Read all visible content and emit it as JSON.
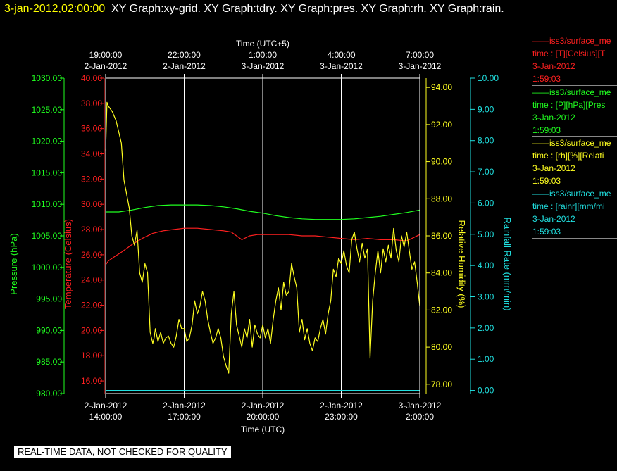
{
  "header": {
    "date_time": "3-jan-2012,02:00:00",
    "graphs": "XY Graph:xy-grid.  XY Graph:tdry.  XY Graph:pres.  XY Graph:rh.  XY Graph:rain."
  },
  "disclaimer": "REAL-TIME DATA, NOT CHECKED FOR QUALITY",
  "legend": [
    {
      "color": "#ff2020",
      "line1": "——iss3/surface_me",
      "line2": "time : [T][Celsius][T",
      "line3": "3-Jan-2012",
      "line4": "1:59:03"
    },
    {
      "color": "#20ff20",
      "line1": "——iss3/surface_me",
      "line2": "time : [P][hPa][Pres",
      "line3": "3-Jan-2012",
      "line4": "1:59:03"
    },
    {
      "color": "#ffff20",
      "line1": "——iss3/surface_me",
      "line2": "time : [rh][%][Relati",
      "line3": "3-Jan-2012",
      "line4": "1:59:03"
    },
    {
      "color": "#20e0e0",
      "line1": "——iss3/surface_me",
      "line2": "time : [rainr][mm/mi",
      "line3": "3-Jan-2012",
      "line4": "1:59:03"
    }
  ],
  "chart_data": {
    "type": "line",
    "colors": {
      "temperature": "#ff2020",
      "pressure": "#20ff20",
      "humidity": "#ffff20",
      "rain": "#20e0e0",
      "grid": "#ffffff"
    },
    "top_axis": {
      "label": "Time (UTC+5)",
      "ticks": [
        {
          "time": "19:00:00",
          "date": "2-Jan-2012"
        },
        {
          "time": "22:00:00",
          "date": "2-Jan-2012"
        },
        {
          "time": "1:00:00",
          "date": "3-Jan-2012"
        },
        {
          "time": "4:00:00",
          "date": "3-Jan-2012"
        },
        {
          "time": "7:00:00",
          "date": "3-Jan-2012"
        }
      ]
    },
    "bottom_axis": {
      "label": "Time (UTC)",
      "ticks": [
        {
          "hours": 14,
          "date": "2-Jan-2012",
          "time": "14:00:00"
        },
        {
          "hours": 17,
          "date": "2-Jan-2012",
          "time": "17:00:00"
        },
        {
          "hours": 20,
          "date": "2-Jan-2012",
          "time": "20:00:00"
        },
        {
          "hours": 23,
          "date": "2-Jan-2012",
          "time": "23:00:00"
        },
        {
          "hours": 26,
          "date": "3-Jan-2012",
          "time": "2:00:00"
        }
      ],
      "range_hours": [
        14,
        26
      ]
    },
    "y_axes": {
      "pressure": {
        "label": "Pressure (hPa)",
        "range": [
          980,
          1030
        ],
        "ticks": [
          "980.00",
          "985.00",
          "990.00",
          "995.00",
          "1000.00",
          "1005.00",
          "1010.00",
          "1015.00",
          "1020.00",
          "1025.00",
          "1030.00"
        ]
      },
      "temperature": {
        "label": "Temperature (Celsius)",
        "range": [
          15,
          40
        ],
        "ticks": [
          "16.00",
          "18.00",
          "20.00",
          "22.00",
          "24.00",
          "26.00",
          "28.00",
          "30.00",
          "32.00",
          "34.00",
          "36.00",
          "38.00",
          "40.00"
        ]
      },
      "humidity": {
        "label": "Relative Humidity (%)",
        "range": [
          77.5,
          94.5
        ],
        "ticks": [
          "78.00",
          "80.00",
          "82.00",
          "84.00",
          "86.00",
          "88.00",
          "90.00",
          "92.00",
          "94.00"
        ]
      },
      "rain": {
        "label": "Rainfall Rate (mm/min)",
        "range": [
          -0.1,
          10
        ],
        "ticks": [
          "0.00",
          "1.00",
          "2.00",
          "3.00",
          "4.00",
          "5.00",
          "6.00",
          "7.00",
          "8.00",
          "9.00",
          "10.00"
        ]
      }
    },
    "series": [
      {
        "name": "iss3/surface_me T",
        "axis": "temperature",
        "x": [
          14,
          14.1,
          14.3,
          14.6,
          15,
          15.4,
          15.8,
          16.2,
          16.6,
          17,
          17.5,
          18,
          18.5,
          18.8,
          19,
          19.2,
          19.5,
          19.8,
          20.3,
          21,
          21.5,
          22,
          22.5,
          23,
          23.5,
          24,
          24.5,
          25,
          25.5,
          26
        ],
        "y": [
          25.2,
          25.5,
          25.8,
          26.2,
          26.8,
          27.3,
          27.7,
          27.9,
          28.0,
          28.1,
          28.1,
          28.0,
          27.9,
          27.8,
          27.5,
          27.2,
          27.5,
          27.6,
          27.6,
          27.6,
          27.5,
          27.5,
          27.4,
          27.3,
          27.2,
          27.3,
          27.2,
          27.2,
          27.1,
          27.6
        ]
      },
      {
        "name": "iss3/surface_me P",
        "axis": "pressure",
        "x": [
          14,
          14.5,
          15,
          15.5,
          16,
          16.5,
          17,
          17.5,
          18,
          18.5,
          19,
          19.5,
          20,
          20.5,
          21,
          21.5,
          22,
          22.5,
          23,
          23.5,
          24,
          24.5,
          25,
          25.5,
          26
        ],
        "y": [
          1008.8,
          1008.8,
          1009.1,
          1009.5,
          1009.8,
          1009.9,
          1009.9,
          1009.9,
          1009.8,
          1009.6,
          1009.3,
          1008.9,
          1008.6,
          1008.2,
          1007.9,
          1007.7,
          1007.6,
          1007.6,
          1007.6,
          1007.7,
          1007.9,
          1008.1,
          1008.4,
          1008.7,
          1009.1
        ]
      },
      {
        "name": "iss3/surface_me rh",
        "axis": "humidity",
        "x": [
          14,
          14.05,
          14.1,
          14.25,
          14.4,
          14.6,
          14.7,
          14.9,
          15.0,
          15.1,
          15.2,
          15.3,
          15.4,
          15.5,
          15.6,
          15.7,
          15.8,
          15.85,
          15.9,
          16.0,
          16.1,
          16.2,
          16.3,
          16.4,
          16.5,
          16.6,
          16.7,
          16.8,
          16.9,
          17.0,
          17.1,
          17.2,
          17.3,
          17.4,
          17.5,
          17.6,
          17.7,
          17.8,
          17.9,
          18.0,
          18.1,
          18.2,
          18.3,
          18.4,
          18.5,
          18.6,
          18.7,
          18.8,
          18.9,
          19.0,
          19.1,
          19.2,
          19.3,
          19.4,
          19.5,
          19.6,
          19.7,
          19.8,
          19.9,
          20.0,
          20.1,
          20.2,
          20.3,
          20.4,
          20.5,
          20.6,
          20.7,
          20.8,
          20.9,
          21.0,
          21.1,
          21.2,
          21.3,
          21.4,
          21.5,
          21.6,
          21.7,
          21.8,
          21.9,
          22.0,
          22.1,
          22.2,
          22.3,
          22.4,
          22.5,
          22.6,
          22.7,
          22.8,
          22.9,
          23.0,
          23.1,
          23.2,
          23.3,
          23.4,
          23.5,
          23.6,
          23.7,
          23.8,
          23.9,
          24.0,
          24.1,
          24.2,
          24.3,
          24.4,
          24.5,
          24.6,
          24.7,
          24.8,
          24.9,
          25.0,
          25.1,
          25.2,
          25.3,
          25.4,
          25.5,
          25.6,
          25.7,
          25.8,
          25.9,
          26.0
        ],
        "y": [
          90.6,
          93.2,
          93.0,
          92.7,
          92.2,
          91.0,
          89.0,
          87.5,
          86.0,
          85.5,
          86.3,
          84.0,
          83.5,
          84.5,
          84.0,
          80.8,
          80.2,
          80.5,
          81.0,
          80.3,
          80.8,
          80.2,
          80.5,
          80.6,
          80.2,
          80.0,
          80.6,
          81.5,
          81.0,
          81.0,
          80.3,
          80.5,
          81.2,
          82.5,
          81.8,
          82.2,
          83.0,
          82.5,
          81.5,
          80.8,
          80.2,
          80.5,
          81.0,
          80.5,
          79.5,
          79.0,
          78.6,
          81.8,
          83.0,
          81.2,
          80.6,
          80.0,
          81.0,
          80.5,
          81.5,
          80.0,
          81.2,
          80.7,
          80.5,
          81.2,
          80.5,
          81.0,
          80.2,
          81.5,
          82.5,
          83.2,
          82.0,
          83.5,
          82.8,
          83.0,
          84.5,
          83.8,
          83.2,
          80.8,
          81.5,
          80.4,
          81.0,
          80.2,
          79.8,
          80.5,
          80.3,
          81.0,
          81.5,
          80.7,
          81.8,
          82.5,
          84.2,
          83.8,
          84.8,
          84.5,
          85.2,
          84.4,
          84.0,
          85.8,
          86.2,
          85.3,
          84.6,
          85.6,
          84.8,
          85.3,
          79.4,
          82.5,
          84.0,
          85.2,
          84.0,
          85.3,
          84.6,
          85.5,
          84.8,
          86.4,
          85.2,
          84.6,
          86.0,
          85.4,
          86.2,
          85.2,
          84.2,
          84.6,
          83.5,
          82.2
        ]
      },
      {
        "name": "iss3/surface_me rainr",
        "axis": "rain",
        "x": [
          14,
          26
        ],
        "y": [
          0,
          0
        ]
      }
    ]
  }
}
